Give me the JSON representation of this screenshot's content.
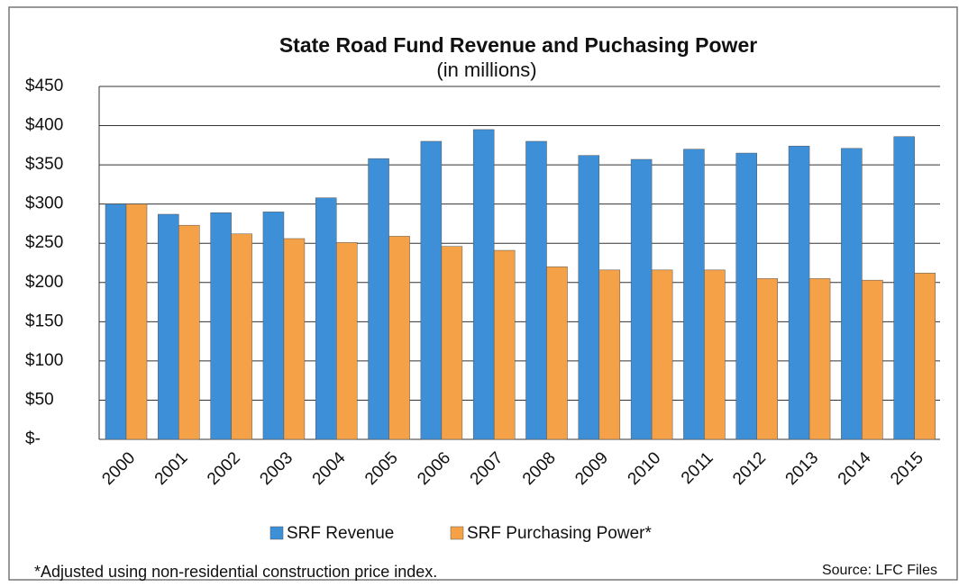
{
  "chart_data": {
    "type": "bar",
    "title": "State Road Fund Revenue and Puchasing Power",
    "subtitle": "(in millions)",
    "categories": [
      "2000",
      "2001",
      "2002",
      "2003",
      "2004",
      "2005",
      "2006",
      "2007",
      "2008",
      "2009",
      "2010",
      "2011",
      "2012",
      "2013",
      "2014",
      "2015"
    ],
    "series": [
      {
        "name": "SRF Revenue",
        "color": "#3d8fd8",
        "values": [
          300,
          287,
          289,
          290,
          308,
          358,
          380,
          395,
          380,
          362,
          357,
          370,
          365,
          374,
          371,
          386
        ]
      },
      {
        "name": "SRF Purchasing Power*",
        "color": "#f5a148",
        "values": [
          300,
          273,
          262,
          256,
          251,
          259,
          246,
          241,
          220,
          216,
          216,
          216,
          205,
          205,
          203,
          212
        ]
      }
    ],
    "ylim": [
      0,
      450
    ],
    "yticks": [
      {
        "value": 0,
        "label": "$-"
      },
      {
        "value": 50,
        "label": "$50"
      },
      {
        "value": 100,
        "label": "$100"
      },
      {
        "value": 150,
        "label": "$150"
      },
      {
        "value": 200,
        "label": "$200"
      },
      {
        "value": 250,
        "label": "$250"
      },
      {
        "value": 300,
        "label": "$300"
      },
      {
        "value": 350,
        "label": "$350"
      },
      {
        "value": 400,
        "label": "$400"
      },
      {
        "value": 450,
        "label": "$450"
      }
    ],
    "grid": true,
    "legend": "bottom",
    "footnote": "*Adjusted using non-residential construction price index.",
    "source": "Source: LFC Files"
  }
}
